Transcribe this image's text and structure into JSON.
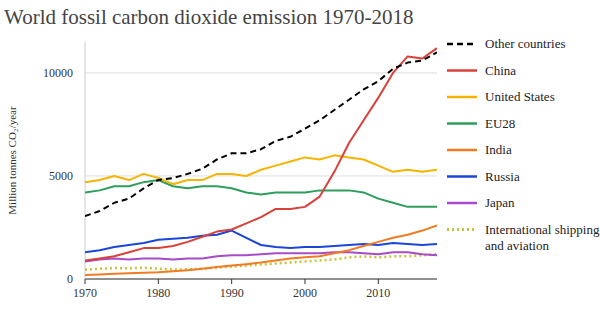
{
  "chart_data": {
    "type": "line",
    "title": "World fossil carbon dioxide emission 1970-2018",
    "y_label": "Million tonnes CO₂/year",
    "x": [
      1970,
      1972,
      1974,
      1976,
      1978,
      1980,
      1982,
      1984,
      1986,
      1988,
      1990,
      1992,
      1994,
      1996,
      1998,
      2000,
      2002,
      2004,
      2006,
      2008,
      2010,
      2012,
      2014,
      2016,
      2018
    ],
    "xlim": [
      1970,
      2018
    ],
    "xticks": [
      1970,
      1980,
      1990,
      2000,
      2010
    ],
    "ylim": [
      0,
      11500
    ],
    "yticks": [
      0,
      5000,
      10000
    ],
    "grid": true,
    "legend": "right",
    "series": [
      {
        "name": "Other countries",
        "color": "#000000",
        "line_style": "dashed",
        "values": [
          3050,
          3300,
          3700,
          3900,
          4400,
          4800,
          4900,
          5100,
          5350,
          5800,
          6100,
          6100,
          6300,
          6700,
          6900,
          7300,
          7700,
          8200,
          8700,
          9200,
          9600,
          10200,
          10500,
          10600,
          11000
        ]
      },
      {
        "name": "China",
        "color": "#d9413a",
        "line_style": "solid",
        "values": [
          900,
          1000,
          1100,
          1300,
          1500,
          1500,
          1600,
          1800,
          2050,
          2300,
          2400,
          2700,
          3000,
          3400,
          3400,
          3500,
          4000,
          5200,
          6600,
          7700,
          8800,
          10000,
          10800,
          10700,
          11200
        ]
      },
      {
        "name": "United States",
        "color": "#f6b400",
        "line_style": "solid",
        "values": [
          4700,
          4800,
          5000,
          4800,
          5100,
          4900,
          4600,
          4800,
          4800,
          5100,
          5100,
          5000,
          5300,
          5500,
          5700,
          5900,
          5800,
          6000,
          5900,
          5800,
          5500,
          5200,
          5300,
          5200,
          5300
        ]
      },
      {
        "name": "EU28",
        "color": "#2f9e5c",
        "line_style": "solid",
        "values": [
          4200,
          4300,
          4500,
          4500,
          4700,
          4800,
          4500,
          4400,
          4500,
          4500,
          4400,
          4200,
          4100,
          4200,
          4200,
          4200,
          4300,
          4300,
          4300,
          4200,
          3900,
          3700,
          3500,
          3500,
          3500
        ]
      },
      {
        "name": "India",
        "color": "#f07b23",
        "line_style": "solid",
        "values": [
          200,
          220,
          250,
          280,
          300,
          330,
          380,
          420,
          500,
          580,
          650,
          720,
          800,
          900,
          1000,
          1050,
          1100,
          1250,
          1400,
          1600,
          1800,
          2000,
          2150,
          2350,
          2600
        ]
      },
      {
        "name": "Russia",
        "color": "#1b47d8",
        "line_style": "solid",
        "values": [
          1300,
          1400,
          1550,
          1650,
          1750,
          1900,
          1950,
          2000,
          2100,
          2150,
          2350,
          2000,
          1650,
          1550,
          1500,
          1550,
          1550,
          1600,
          1650,
          1700,
          1650,
          1750,
          1700,
          1650,
          1700
        ]
      },
      {
        "name": "Japan",
        "color": "#a84bc9",
        "line_style": "solid",
        "values": [
          850,
          950,
          1000,
          950,
          1000,
          1000,
          950,
          1000,
          1000,
          1100,
          1150,
          1150,
          1200,
          1250,
          1250,
          1250,
          1250,
          1300,
          1300,
          1250,
          1200,
          1300,
          1300,
          1200,
          1150
        ]
      },
      {
        "name": "International shipping and aviation",
        "color": "#c9c136",
        "line_style": "dotted",
        "values": [
          450,
          500,
          530,
          520,
          550,
          500,
          460,
          470,
          500,
          550,
          600,
          650,
          700,
          750,
          800,
          850,
          900,
          950,
          1050,
          1100,
          1050,
          1100,
          1100,
          1150,
          1200
        ]
      }
    ]
  }
}
